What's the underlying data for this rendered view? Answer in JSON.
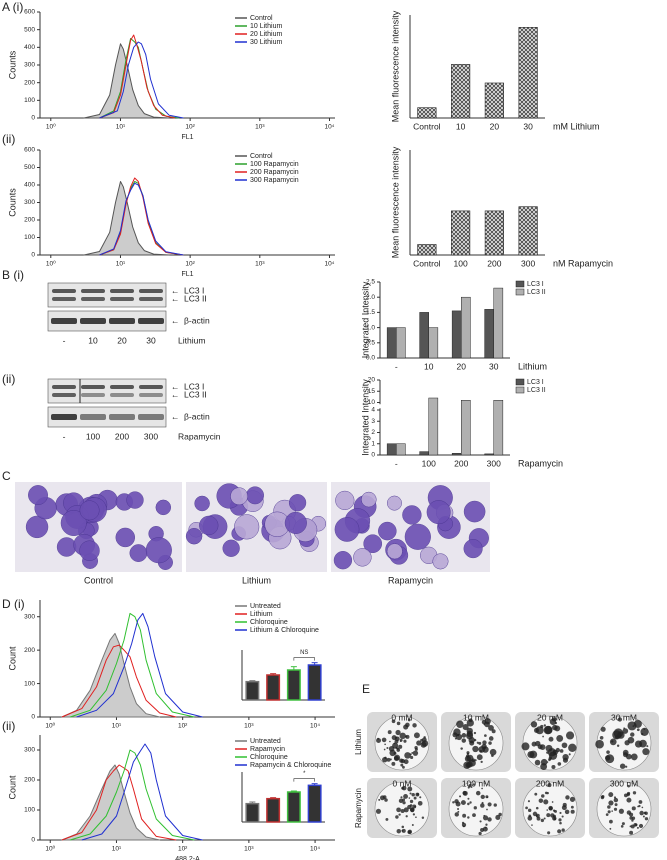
{
  "panel_labels": [
    "A (i)",
    "(ii)",
    "B (i)",
    "(ii)",
    "C",
    "D (i)",
    "(ii)",
    "E"
  ],
  "chart_data": [
    {
      "type": "line",
      "xscale": "log",
      "xlabel": "FL1",
      "ylabel": "Counts",
      "xlim": [
        0.7,
        12000
      ],
      "ylim": [
        0,
        600
      ],
      "yticks": [
        0,
        100,
        200,
        300,
        400,
        500,
        600
      ],
      "xticks": [
        {
          "value": 1,
          "label": "10⁰"
        },
        {
          "value": 10,
          "label": "10¹"
        },
        {
          "value": 100,
          "label": "10²"
        },
        {
          "value": 1000,
          "label": "10³"
        },
        {
          "value": 10000,
          "label": "10⁴"
        }
      ],
      "legend": "upper right",
      "series": [
        {
          "name": "Control",
          "color": "#555555",
          "fill": "#cccccc",
          "x": [
            3,
            5,
            7,
            8.5,
            10,
            11,
            12.5,
            15,
            18,
            22,
            30,
            50
          ],
          "values": [
            0,
            20,
            130,
            300,
            420,
            390,
            300,
            160,
            70,
            25,
            5,
            0
          ]
        },
        {
          "name": "10 Lithium",
          "color": "#2ca02c",
          "x": [
            5,
            8,
            10,
            12,
            14,
            16,
            18,
            21,
            25,
            32,
            45,
            70
          ],
          "values": [
            0,
            40,
            150,
            330,
            450,
            430,
            400,
            280,
            150,
            50,
            10,
            0
          ]
        },
        {
          "name": "20 Lithium",
          "color": "#e02020",
          "x": [
            5,
            8,
            10,
            12,
            14,
            15.5,
            17,
            20,
            24,
            30,
            40,
            60
          ],
          "values": [
            0,
            30,
            130,
            300,
            440,
            470,
            420,
            320,
            170,
            70,
            15,
            0
          ]
        },
        {
          "name": "30 Lithium",
          "color": "#2030d0",
          "x": [
            5,
            9,
            11,
            13,
            15.5,
            18,
            20,
            23,
            27,
            35,
            50,
            80
          ],
          "values": [
            0,
            40,
            150,
            300,
            400,
            430,
            420,
            360,
            220,
            80,
            15,
            0
          ]
        }
      ]
    },
    {
      "type": "bar",
      "ylabel": "Mean fluorescence intensity",
      "xlabel": "mM Lithium",
      "categories": [
        "Control",
        "10",
        "20",
        "30"
      ],
      "values": [
        5,
        26,
        17,
        44
      ],
      "ylim": [
        0,
        50
      ],
      "color": "#777777",
      "hatch": true
    },
    {
      "type": "line",
      "xscale": "log",
      "xlabel": "FL1",
      "ylabel": "Counts",
      "xlim": [
        0.7,
        12000
      ],
      "ylim": [
        0,
        600
      ],
      "yticks": [
        0,
        100,
        200,
        300,
        400,
        500,
        600
      ],
      "xticks": [
        {
          "value": 1,
          "label": "10⁰"
        },
        {
          "value": 10,
          "label": "10¹"
        },
        {
          "value": 100,
          "label": "10²"
        },
        {
          "value": 1000,
          "label": "10³"
        },
        {
          "value": 10000,
          "label": "10⁴"
        }
      ],
      "legend": "upper right",
      "series": [
        {
          "name": "Control",
          "color": "#555555",
          "fill": "#cccccc",
          "x": [
            3,
            5,
            7,
            8.5,
            10,
            11,
            12.5,
            15,
            18,
            22,
            30,
            50
          ],
          "values": [
            0,
            20,
            130,
            300,
            420,
            390,
            300,
            160,
            70,
            25,
            5,
            0
          ]
        },
        {
          "name": "100 Rapamycin",
          "color": "#2ca02c",
          "x": [
            5,
            8,
            10,
            12,
            14,
            16,
            18,
            21,
            25,
            32,
            45,
            80
          ],
          "values": [
            0,
            30,
            130,
            300,
            380,
            420,
            410,
            340,
            190,
            70,
            15,
            0
          ]
        },
        {
          "name": "200 Rapamycin",
          "color": "#e02020",
          "x": [
            5,
            8,
            10,
            12,
            14,
            16,
            18,
            21,
            25,
            32,
            45,
            80
          ],
          "values": [
            0,
            30,
            120,
            290,
            390,
            440,
            420,
            330,
            180,
            65,
            15,
            0
          ]
        },
        {
          "name": "300 Rapamycin",
          "color": "#2030d0",
          "x": [
            5,
            8,
            10,
            12,
            14,
            16,
            18,
            21,
            25,
            32,
            45,
            80
          ],
          "values": [
            0,
            35,
            140,
            310,
            370,
            410,
            400,
            340,
            200,
            80,
            18,
            0
          ]
        }
      ]
    },
    {
      "type": "bar",
      "ylabel": "Mean fluorescence intensity",
      "xlabel": "nM Rapamycin",
      "categories": [
        "Control",
        "100",
        "200",
        "300"
      ],
      "values": [
        5,
        21,
        21,
        23
      ],
      "ylim": [
        0,
        50
      ],
      "color": "#777777",
      "hatch": true
    },
    {
      "type": "bar",
      "ylabel": "Integrated Intensity",
      "xlabel": "Lithium",
      "categories": [
        "-",
        "10",
        "20",
        "30"
      ],
      "ylim": [
        0,
        2.5
      ],
      "yticks": [
        {
          "value": 0,
          "label": "0.0"
        },
        0.5,
        {
          "value": 1,
          "label": "1.0"
        },
        1.5,
        {
          "value": 2,
          "label": "2.0"
        },
        2.5
      ],
      "legend": "upper right",
      "series": [
        {
          "name": "LC3 I",
          "color": "#555555",
          "values": [
            1.0,
            1.5,
            1.55,
            1.6
          ]
        },
        {
          "name": "LC3 II",
          "color": "#b0b0b0",
          "values": [
            1.0,
            1.0,
            2.0,
            2.3
          ]
        }
      ]
    },
    {
      "type": "bar",
      "ylabel": "Integrated Intensity",
      "xlabel": "Rapamycin",
      "categories": [
        "-",
        "100",
        "200",
        "300"
      ],
      "ylim": [
        0,
        20
      ],
      "ybreak": [
        4,
        10
      ],
      "yticks": [
        0,
        1,
        2,
        3,
        4,
        10,
        15,
        20
      ],
      "legend": "upper right",
      "series": [
        {
          "name": "LC3 I",
          "color": "#555555",
          "values": [
            1.0,
            0.3,
            0.15,
            0.1
          ]
        },
        {
          "name": "LC3 II",
          "color": "#b0b0b0",
          "values": [
            1.0,
            12,
            11,
            11
          ]
        }
      ]
    },
    {
      "type": "line",
      "xscale": "log",
      "ylabel": "Count",
      "xlim": [
        0.7,
        20000
      ],
      "ylim": [
        0,
        350
      ],
      "yticks": [
        0,
        100,
        200,
        300
      ],
      "xticks": [
        {
          "value": 1,
          "label": "10⁰"
        },
        {
          "value": 10,
          "label": "10¹"
        },
        {
          "value": 100,
          "label": "10²"
        },
        {
          "value": 1000,
          "label": "10³"
        },
        {
          "value": 10000,
          "label": "10⁴"
        }
      ],
      "legend": "upper right",
      "series": [
        {
          "name": "Untreated",
          "color": "#777777",
          "fill": "#cccccc",
          "x": [
            1.5,
            2.5,
            4,
            6,
            8,
            9.5,
            11,
            13,
            16,
            20,
            28,
            45
          ],
          "values": [
            0,
            20,
            80,
            170,
            230,
            250,
            220,
            160,
            90,
            40,
            10,
            0
          ]
        },
        {
          "name": "Lithium",
          "color": "#e02020",
          "x": [
            1.5,
            3,
            5,
            7,
            9,
            11,
            13,
            16,
            20,
            28,
            45,
            80
          ],
          "values": [
            0,
            25,
            90,
            170,
            210,
            215,
            200,
            180,
            120,
            50,
            12,
            0
          ]
        },
        {
          "name": "Chloroquine",
          "color": "#30c030",
          "x": [
            2,
            4,
            7,
            10,
            13,
            16,
            19,
            23,
            28,
            40,
            70,
            150
          ],
          "values": [
            0,
            20,
            80,
            160,
            230,
            310,
            300,
            260,
            170,
            70,
            15,
            0
          ]
        },
        {
          "name": "Lithium & Chloroquine",
          "color": "#2030d0",
          "x": [
            2.5,
            5,
            9,
            13,
            17,
            21,
            25,
            30,
            38,
            55,
            100,
            200
          ],
          "values": [
            0,
            20,
            70,
            150,
            220,
            290,
            310,
            270,
            180,
            70,
            15,
            0
          ]
        }
      ]
    },
    {
      "type": "bar",
      "categories": [
        null,
        null,
        null,
        null
      ],
      "values": [
        55,
        75,
        90,
        105
      ],
      "errors": [
        3,
        4,
        10,
        7
      ],
      "ylim": [
        0,
        150
      ],
      "color": "#333333",
      "colors": [
        "#777777",
        "#c03030",
        "#40c040",
        "#3040d0"
      ],
      "annotation": "NS"
    },
    {
      "type": "line",
      "xscale": "log",
      "xlabel": "488 2-A",
      "ylabel": "Count",
      "xlim": [
        0.7,
        20000
      ],
      "ylim": [
        0,
        350
      ],
      "yticks": [
        0,
        100,
        200,
        300
      ],
      "xticks": [
        {
          "value": 1,
          "label": "10⁰"
        },
        {
          "value": 10,
          "label": "10¹"
        },
        {
          "value": 100,
          "label": "10²"
        },
        {
          "value": 1000,
          "label": "10³"
        },
        {
          "value": 10000,
          "label": "10⁴"
        }
      ],
      "legend": "upper right",
      "series": [
        {
          "name": "Untreated",
          "color": "#777777",
          "fill": "#cccccc",
          "x": [
            1.5,
            2.5,
            4,
            6,
            8,
            9.5,
            11,
            13,
            16,
            20,
            28,
            45
          ],
          "values": [
            0,
            20,
            80,
            170,
            230,
            250,
            220,
            160,
            90,
            40,
            10,
            0
          ]
        },
        {
          "name": "Rapamycin",
          "color": "#e02020",
          "x": [
            1.5,
            3,
            5,
            7,
            9,
            11,
            13,
            15,
            18,
            24,
            40,
            80
          ],
          "values": [
            0,
            25,
            100,
            200,
            230,
            250,
            240,
            230,
            170,
            70,
            12,
            0
          ]
        },
        {
          "name": "Chloroquine",
          "color": "#30c030",
          "x": [
            2,
            4,
            7,
            10,
            13,
            16,
            19,
            23,
            28,
            40,
            70,
            150
          ],
          "values": [
            0,
            20,
            80,
            160,
            230,
            300,
            290,
            250,
            170,
            70,
            15,
            0
          ]
        },
        {
          "name": "Rapamycin & Chloroquine",
          "color": "#2030d0",
          "x": [
            3,
            6,
            10,
            14,
            18,
            22,
            27,
            33,
            40,
            55,
            100,
            200
          ],
          "values": [
            0,
            20,
            80,
            180,
            260,
            290,
            320,
            290,
            200,
            80,
            15,
            0
          ]
        }
      ]
    },
    {
      "type": "bar",
      "categories": [
        null,
        null,
        null,
        null
      ],
      "values": [
        55,
        70,
        90,
        110
      ],
      "errors": [
        5,
        3,
        3,
        5
      ],
      "ylim": [
        0,
        150
      ],
      "color": "#333333",
      "colors": [
        "#777777",
        "#c03030",
        "#40c040",
        "#3040d0"
      ],
      "annotation": "*"
    }
  ],
  "blots": [
    {
      "bands": [
        "LC3 I",
        "LC3 II"
      ],
      "loading": "β-actin",
      "lanes": [
        "-",
        "10",
        "20",
        "30"
      ],
      "treatment": "Lithium"
    },
    {
      "bands": [
        "LC3 I",
        "LC3 II"
      ],
      "loading": "β-actin",
      "lanes": [
        "-",
        "100",
        "200",
        "300"
      ],
      "treatment": "Rapamycin"
    }
  ],
  "micrographs": [
    "Control",
    "Lithium",
    "Rapamycin"
  ],
  "plates": {
    "conditions": [
      "Lithium",
      "Rapamycin"
    ],
    "doses": [
      [
        "0 mM",
        "10 mM",
        "20 mM",
        "30 mM"
      ],
      [
        "0 nM",
        "100 nM",
        "200 nM",
        "300 nM"
      ]
    ]
  }
}
